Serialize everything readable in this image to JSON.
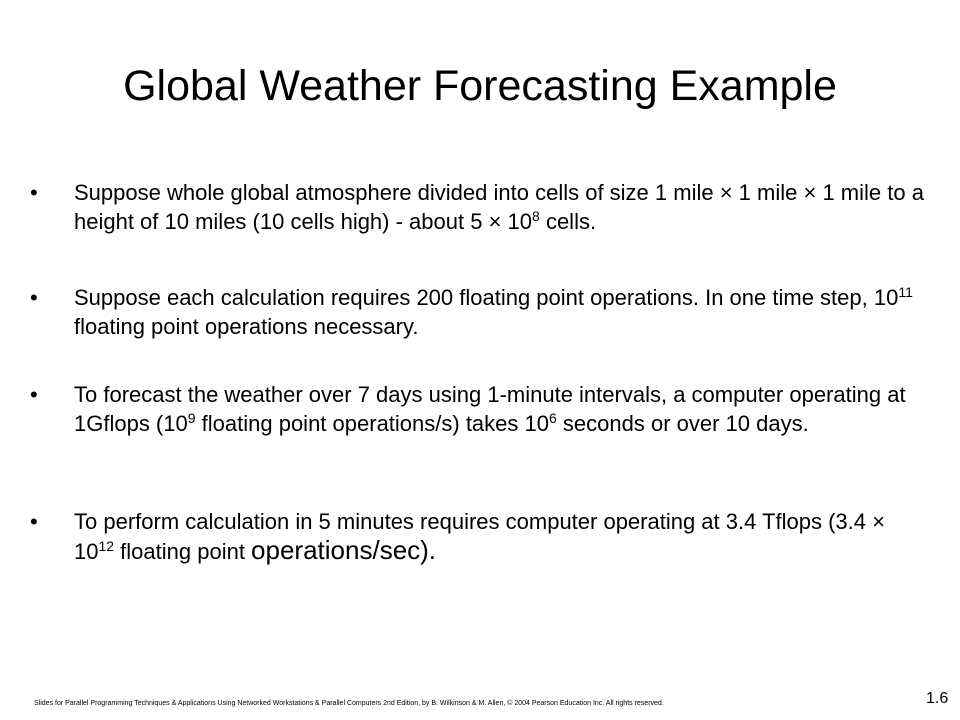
{
  "slide": {
    "title": "Global Weather Forecasting Example",
    "bullet_char": "•",
    "times": "×",
    "b1": {
      "part1": "Suppose whole global atmosphere divided into cells of size 1 mile ",
      "part2": " 1 mile ",
      "part3": " 1 mile to a height of 10 miles (10 cells high) - about 5 ",
      "base": "10",
      "exp": "8",
      "part4": " cells."
    },
    "b2": {
      "part1": "Suppose each calculation requires 200 floating point operations. In one time step, ",
      "base": "10",
      "exp": "11",
      "part2": " floating point operations necessary."
    },
    "b3": {
      "part1": "To forecast the weather over 7 days using 1-minute intervals, a computer operating at 1Gflops (",
      "base1": "10",
      "exp1": "9",
      "part2": " floating point operations/s) takes ",
      "base2": "10",
      "exp2": "6",
      "part3": " seconds or over 10 days."
    },
    "b4": {
      "part1": "To perform calculation in 5 minutes requires computer operating at 3.4 Tflops (3.4 ",
      "base": "10",
      "exp": "12",
      "part2": " floating point ",
      "part3": "operations/sec)."
    },
    "footer": "Slides for Parallel Programming Techniques & Applications Using Networked Workstations & Parallel Computers 2nd Edition, by B. Wilkinson & M. Allen, © 2004 Pearson Education Inc. All rights reserved.",
    "page_number": "1.6"
  }
}
